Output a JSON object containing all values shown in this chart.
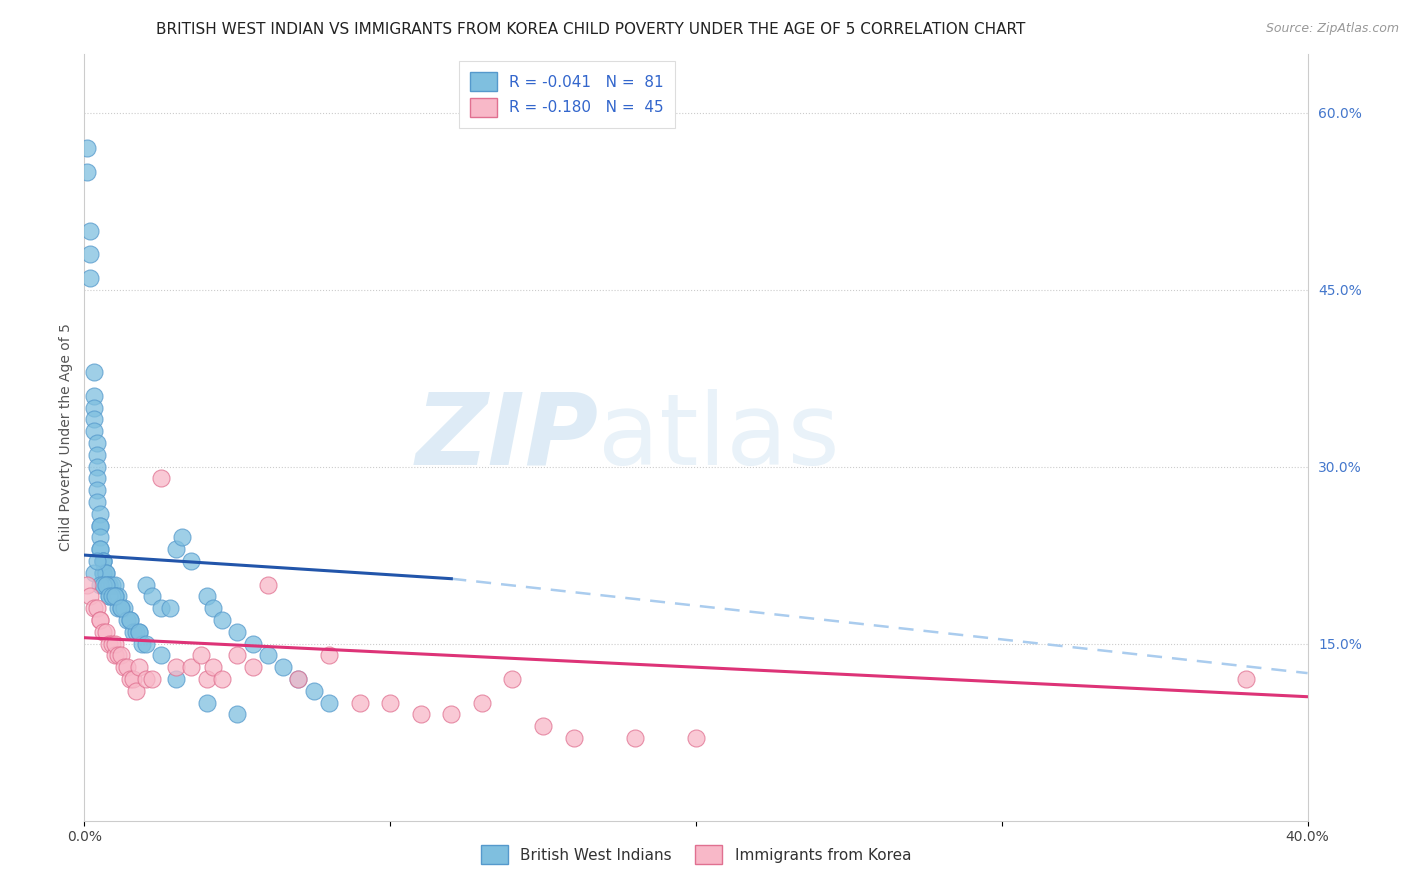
{
  "title": "BRITISH WEST INDIAN VS IMMIGRANTS FROM KOREA CHILD POVERTY UNDER THE AGE OF 5 CORRELATION CHART",
  "source": "Source: ZipAtlas.com",
  "ylabel": "Child Poverty Under the Age of 5",
  "right_yticks": [
    "60.0%",
    "45.0%",
    "30.0%",
    "15.0%"
  ],
  "right_ytick_vals": [
    0.6,
    0.45,
    0.3,
    0.15
  ],
  "legend_label1": "British West Indians",
  "legend_label2": "Immigrants from Korea",
  "watermark_zip": "ZIP",
  "watermark_atlas": "atlas",
  "blue_scatter": "#7fbfdf",
  "blue_edge": "#5599cc",
  "pink_scatter": "#f8b8c8",
  "pink_edge": "#e07090",
  "line_blue_color": "#2255aa",
  "line_pink_color": "#dd3377",
  "dash_line_color": "#aaccee",
  "xlim": [
    0.0,
    0.4
  ],
  "ylim": [
    0.0,
    0.65
  ],
  "blue_x": [
    0.001,
    0.001,
    0.002,
    0.002,
    0.002,
    0.003,
    0.003,
    0.003,
    0.003,
    0.003,
    0.004,
    0.004,
    0.004,
    0.004,
    0.004,
    0.004,
    0.005,
    0.005,
    0.005,
    0.005,
    0.005,
    0.005,
    0.006,
    0.006,
    0.006,
    0.006,
    0.006,
    0.007,
    0.007,
    0.007,
    0.008,
    0.008,
    0.008,
    0.009,
    0.009,
    0.01,
    0.01,
    0.01,
    0.011,
    0.011,
    0.012,
    0.013,
    0.014,
    0.015,
    0.016,
    0.017,
    0.018,
    0.019,
    0.02,
    0.022,
    0.025,
    0.028,
    0.03,
    0.032,
    0.035,
    0.04,
    0.042,
    0.045,
    0.05,
    0.055,
    0.06,
    0.065,
    0.07,
    0.075,
    0.08,
    0.003,
    0.004,
    0.005,
    0.006,
    0.007,
    0.008,
    0.009,
    0.01,
    0.012,
    0.015,
    0.018,
    0.02,
    0.025,
    0.03,
    0.04,
    0.05
  ],
  "blue_y": [
    0.55,
    0.57,
    0.5,
    0.48,
    0.46,
    0.38,
    0.36,
    0.35,
    0.34,
    0.33,
    0.32,
    0.31,
    0.3,
    0.29,
    0.28,
    0.27,
    0.26,
    0.25,
    0.25,
    0.24,
    0.23,
    0.23,
    0.22,
    0.22,
    0.21,
    0.21,
    0.22,
    0.21,
    0.21,
    0.2,
    0.2,
    0.2,
    0.19,
    0.2,
    0.19,
    0.2,
    0.19,
    0.19,
    0.18,
    0.19,
    0.18,
    0.18,
    0.17,
    0.17,
    0.16,
    0.16,
    0.16,
    0.15,
    0.2,
    0.19,
    0.18,
    0.18,
    0.23,
    0.24,
    0.22,
    0.19,
    0.18,
    0.17,
    0.16,
    0.15,
    0.14,
    0.13,
    0.12,
    0.11,
    0.1,
    0.21,
    0.22,
    0.2,
    0.2,
    0.2,
    0.19,
    0.19,
    0.19,
    0.18,
    0.17,
    0.16,
    0.15,
    0.14,
    0.12,
    0.1,
    0.09
  ],
  "pink_x": [
    0.001,
    0.002,
    0.003,
    0.004,
    0.005,
    0.005,
    0.006,
    0.007,
    0.008,
    0.009,
    0.01,
    0.01,
    0.011,
    0.012,
    0.013,
    0.014,
    0.015,
    0.016,
    0.017,
    0.018,
    0.02,
    0.022,
    0.025,
    0.03,
    0.035,
    0.038,
    0.04,
    0.042,
    0.045,
    0.05,
    0.055,
    0.06,
    0.07,
    0.08,
    0.09,
    0.1,
    0.11,
    0.12,
    0.13,
    0.14,
    0.15,
    0.16,
    0.18,
    0.2,
    0.38
  ],
  "pink_y": [
    0.2,
    0.19,
    0.18,
    0.18,
    0.17,
    0.17,
    0.16,
    0.16,
    0.15,
    0.15,
    0.14,
    0.15,
    0.14,
    0.14,
    0.13,
    0.13,
    0.12,
    0.12,
    0.11,
    0.13,
    0.12,
    0.12,
    0.29,
    0.13,
    0.13,
    0.14,
    0.12,
    0.13,
    0.12,
    0.14,
    0.13,
    0.2,
    0.12,
    0.14,
    0.1,
    0.1,
    0.09,
    0.09,
    0.1,
    0.12,
    0.08,
    0.07,
    0.07,
    0.07,
    0.12
  ],
  "blue_line_x0": 0.0,
  "blue_line_x1": 0.12,
  "blue_line_y0": 0.225,
  "blue_line_y1": 0.205,
  "dash_line_x0": 0.12,
  "dash_line_x1": 0.4,
  "dash_line_y0": 0.205,
  "dash_line_y1": 0.125,
  "pink_line_x0": 0.0,
  "pink_line_x1": 0.4,
  "pink_line_y0": 0.155,
  "pink_line_y1": 0.105,
  "background_color": "#ffffff",
  "grid_color": "#cccccc",
  "title_fontsize": 11,
  "tick_fontsize": 10,
  "axis_label_fontsize": 10
}
